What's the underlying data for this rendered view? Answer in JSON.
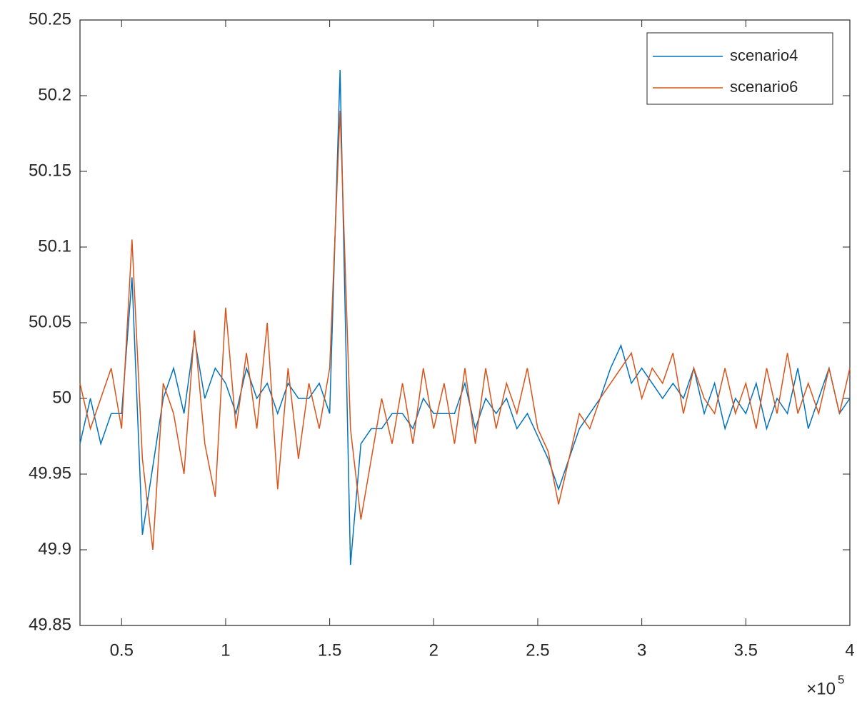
{
  "chart_data": {
    "type": "line",
    "x_multiplier": "×10",
    "x_exponent": "5",
    "x": [
      0.3,
      0.35,
      0.4,
      0.45,
      0.5,
      0.55,
      0.6,
      0.65,
      0.7,
      0.75,
      0.8,
      0.85,
      0.9,
      0.95,
      1.0,
      1.05,
      1.1,
      1.15,
      1.2,
      1.25,
      1.3,
      1.35,
      1.4,
      1.45,
      1.5,
      1.55,
      1.6,
      1.65,
      1.7,
      1.75,
      1.8,
      1.85,
      1.9,
      1.95,
      2.0,
      2.05,
      2.1,
      2.15,
      2.2,
      2.25,
      2.3,
      2.35,
      2.4,
      2.45,
      2.5,
      2.55,
      2.6,
      2.65,
      2.7,
      2.75,
      2.8,
      2.85,
      2.9,
      2.95,
      3.0,
      3.05,
      3.1,
      3.15,
      3.2,
      3.25,
      3.3,
      3.35,
      3.4,
      3.45,
      3.5,
      3.55,
      3.6,
      3.65,
      3.7,
      3.75,
      3.8,
      3.85,
      3.9,
      3.95,
      4.0
    ],
    "series": [
      {
        "name": "scenario4",
        "color": "#0072bd",
        "values": [
          49.97,
          50.0,
          49.97,
          49.99,
          49.99,
          50.08,
          49.91,
          49.955,
          50.0,
          50.02,
          49.99,
          50.04,
          50.0,
          50.02,
          50.01,
          49.99,
          50.02,
          50.0,
          50.01,
          49.99,
          50.01,
          50.0,
          50.0,
          50.01,
          49.99,
          50.217,
          49.89,
          49.97,
          49.98,
          49.98,
          49.99,
          49.99,
          49.98,
          50.0,
          49.99,
          49.99,
          49.99,
          50.01,
          49.98,
          50.0,
          49.99,
          50.0,
          49.98,
          49.99,
          49.975,
          49.96,
          49.94,
          49.96,
          49.98,
          49.99,
          50.0,
          50.02,
          50.035,
          50.01,
          50.02,
          50.01,
          50.0,
          50.01,
          50.0,
          50.02,
          49.99,
          50.01,
          49.98,
          50.0,
          49.99,
          50.01,
          49.98,
          50.0,
          49.99,
          50.02,
          49.98,
          50.0,
          50.02,
          49.99,
          50.0
        ]
      },
      {
        "name": "scenario6",
        "color": "#d95319",
        "values": [
          50.01,
          49.98,
          50.0,
          50.02,
          49.98,
          50.105,
          49.96,
          49.9,
          50.01,
          49.99,
          49.95,
          50.045,
          49.97,
          49.935,
          50.06,
          49.98,
          50.03,
          49.98,
          50.05,
          49.94,
          50.02,
          49.96,
          50.01,
          49.98,
          50.02,
          50.19,
          49.98,
          49.92,
          49.96,
          50.0,
          49.97,
          50.01,
          49.97,
          50.02,
          49.98,
          50.01,
          49.97,
          50.02,
          49.97,
          50.02,
          49.98,
          50.01,
          49.99,
          50.02,
          49.98,
          49.965,
          49.93,
          49.96,
          49.99,
          49.98,
          50.0,
          50.01,
          50.02,
          50.03,
          50.0,
          50.02,
          50.01,
          50.03,
          49.99,
          50.02,
          50.0,
          49.99,
          50.02,
          49.99,
          50.01,
          49.98,
          50.02,
          49.99,
          50.03,
          49.99,
          50.01,
          49.99,
          50.02,
          49.99,
          50.02
        ]
      }
    ],
    "xlim": [
      0.3,
      4
    ],
    "xticks": [
      0.5,
      1,
      1.5,
      2,
      2.5,
      3,
      3.5,
      4
    ],
    "ylim": [
      49.85,
      50.25
    ],
    "yticks": [
      49.85,
      49.9,
      49.95,
      50,
      50.05,
      50.1,
      50.15,
      50.2,
      50.25
    ],
    "legend": "northeast"
  }
}
